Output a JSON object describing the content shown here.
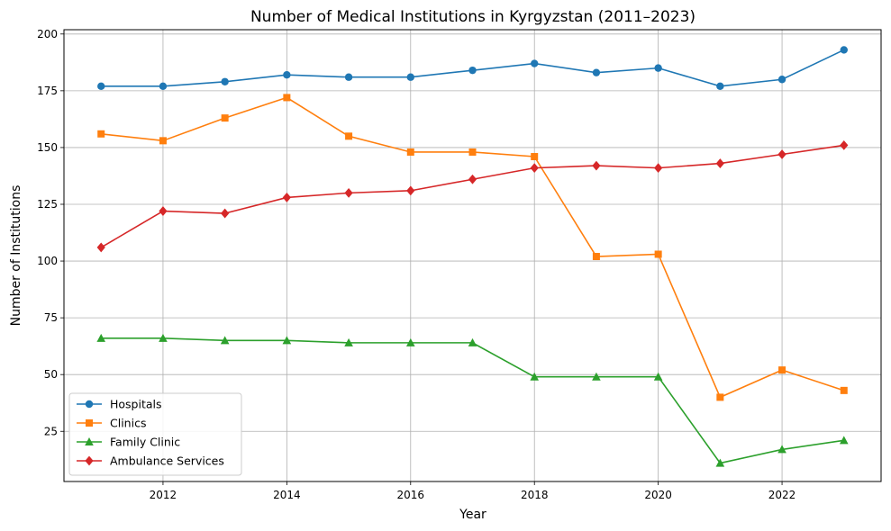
{
  "chart_data": {
    "type": "line",
    "title": "Number of Medical Institutions in Kyrgyzstan (2011–2023)",
    "xlabel": "Year",
    "ylabel": "Number of Institutions",
    "x": [
      2011,
      2012,
      2013,
      2014,
      2015,
      2016,
      2017,
      2018,
      2019,
      2020,
      2021,
      2022,
      2023
    ],
    "xlim": [
      2010.4,
      2023.6
    ],
    "ylim": [
      2.9,
      201.9
    ],
    "xticks": [
      2012,
      2014,
      2016,
      2018,
      2020,
      2022
    ],
    "yticks": [
      25,
      50,
      75,
      100,
      125,
      150,
      175,
      200
    ],
    "grid": true,
    "legend_position": "lower-left",
    "series": [
      {
        "name": "Hospitals",
        "color": "#1f77b4",
        "marker": "circle",
        "values": [
          177,
          177,
          179,
          182,
          181,
          181,
          184,
          187,
          183,
          185,
          177,
          180,
          193
        ]
      },
      {
        "name": "Clinics",
        "color": "#ff7f0e",
        "marker": "square",
        "values": [
          156,
          153,
          163,
          172,
          155,
          148,
          148,
          146,
          102,
          103,
          40,
          52,
          43
        ]
      },
      {
        "name": "Family Clinic",
        "color": "#2ca02c",
        "marker": "triangle",
        "values": [
          66,
          66,
          65,
          65,
          64,
          64,
          64,
          49,
          49,
          49,
          11,
          17,
          21
        ]
      },
      {
        "name": "Ambulance Services",
        "color": "#d62728",
        "marker": "diamond",
        "values": [
          106,
          122,
          121,
          128,
          130,
          131,
          136,
          141,
          142,
          141,
          143,
          147,
          151
        ]
      }
    ]
  }
}
